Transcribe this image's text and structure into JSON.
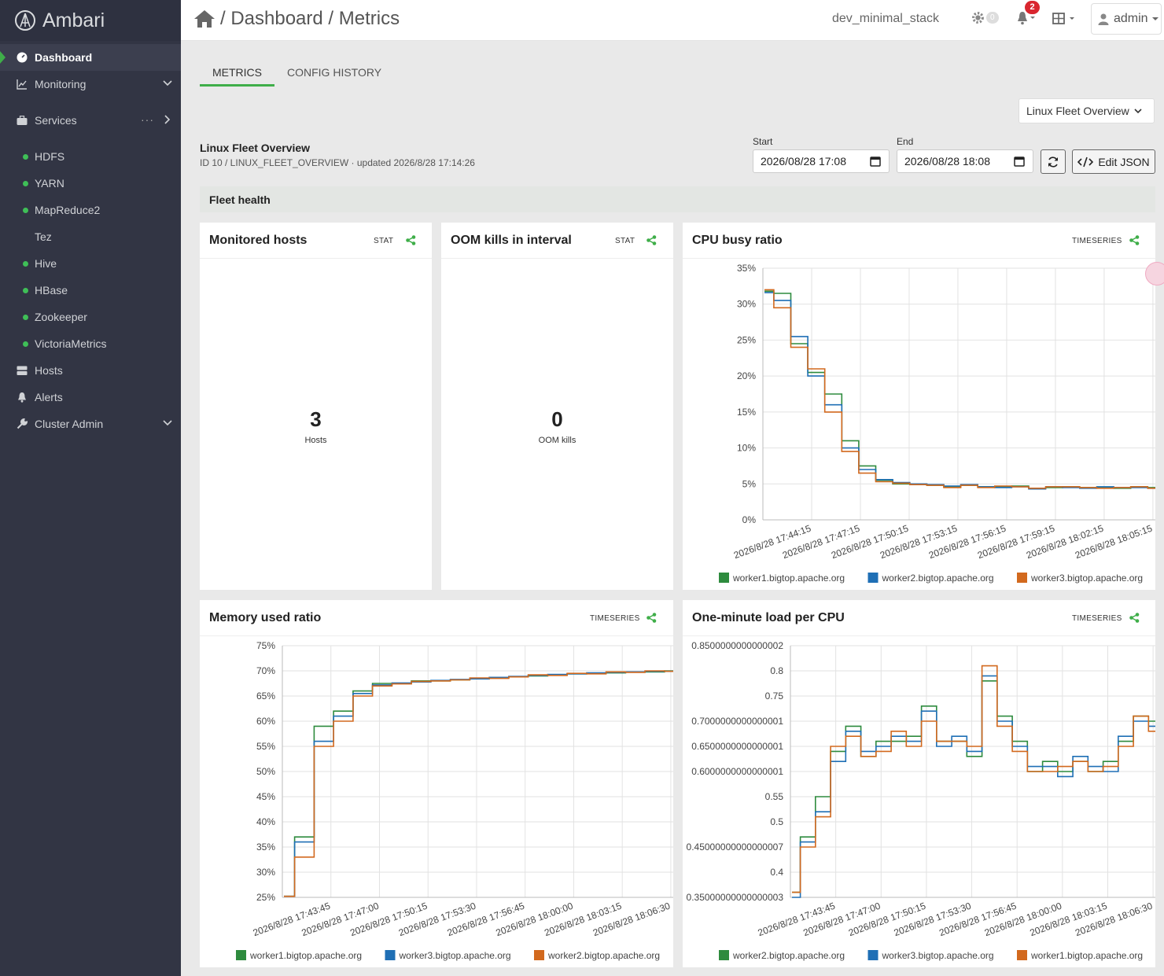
{
  "brand": {
    "name": "Ambari"
  },
  "sidebar": {
    "items": [
      {
        "label": "Dashboard",
        "icon": "dashboard-icon",
        "active": true
      },
      {
        "label": "Monitoring",
        "icon": "chart-line-icon"
      },
      {
        "label": "Services",
        "icon": "briefcase-icon"
      },
      {
        "label": "Hosts",
        "icon": "server-icon"
      },
      {
        "label": "Alerts",
        "icon": "bell-icon"
      },
      {
        "label": "Cluster Admin",
        "icon": "wrench-icon"
      }
    ],
    "services": [
      {
        "label": "HDFS",
        "status": "green"
      },
      {
        "label": "YARN",
        "status": "green"
      },
      {
        "label": "MapReduce2",
        "status": "green"
      },
      {
        "label": "Tez",
        "status": "none"
      },
      {
        "label": "Hive",
        "status": "green"
      },
      {
        "label": "HBase",
        "status": "green"
      },
      {
        "label": "Zookeeper",
        "status": "green"
      },
      {
        "label": "VictoriaMetrics",
        "status": "green"
      }
    ],
    "services_more": "···"
  },
  "topbar": {
    "breadcrumb": "/ Dashboard / Metrics",
    "stack": "dev_minimal_stack",
    "ops_count": "0",
    "alerts_count": "2",
    "user": "admin"
  },
  "tabs": [
    "METRICS",
    "CONFIG HISTORY"
  ],
  "dashboard": {
    "selector": "Linux Fleet Overview",
    "title": "Linux Fleet Overview",
    "subtitle": "ID 10 / LINUX_FLEET_OVERVIEW · updated 2026/8/28 17:14:26",
    "start_label": "Start",
    "start_value": "2026/08/28 17:08",
    "end_label": "End",
    "end_value": "2026/08/28 18:08",
    "edit_json": "Edit JSON",
    "section": "Fleet health"
  },
  "panels": {
    "hosts": {
      "title": "Monitored hosts",
      "type": "STAT",
      "value": "3",
      "unit": "Hosts"
    },
    "oom": {
      "title": "OOM kills in interval",
      "type": "STAT",
      "value": "0",
      "unit": "OOM kills"
    },
    "cpu": {
      "title": "CPU busy ratio",
      "type": "TIMESERIES"
    },
    "mem": {
      "title": "Memory used ratio",
      "type": "TIMESERIES"
    },
    "load": {
      "title": "One-minute load per CPU",
      "type": "TIMESERIES"
    }
  },
  "colors": {
    "accent": "#3fae49",
    "series_green": "#2e8b3e",
    "series_blue": "#1f6fb5",
    "series_orange": "#d2691e"
  },
  "chart_data": [
    {
      "id": "cpu",
      "type": "line",
      "ylim": [
        0,
        35
      ],
      "yticks": [
        "0%",
        "5%",
        "10%",
        "15%",
        "20%",
        "25%",
        "30%",
        "35%"
      ],
      "xticks": [
        "2026/8/28 17:44:15",
        "2026/8/28 17:47:15",
        "2026/8/28 17:50:15",
        "2026/8/28 17:53:15",
        "2026/8/28 17:56:15",
        "2026/8/28 17:59:15",
        "2026/8/28 18:02:15",
        "2026/8/28 18:05:15"
      ],
      "series": [
        {
          "name": "worker1.bigtop.apache.org",
          "color": "#2e8b3e",
          "values": [
            31.8,
            31.5,
            24.5,
            20.5,
            17.5,
            11,
            7.5,
            5.5,
            5.0,
            5.0,
            4.8,
            4.6,
            4.8,
            4.6,
            4.6,
            4.7,
            4.4,
            4.5,
            4.6,
            4.5,
            4.5,
            4.4,
            4.6,
            4.5
          ]
        },
        {
          "name": "worker2.bigtop.apache.org",
          "color": "#1f6fb5",
          "values": [
            31.6,
            30.5,
            25.5,
            20,
            16,
            10,
            7,
            5.6,
            5.2,
            5.0,
            4.9,
            4.7,
            4.9,
            4.6,
            4.5,
            4.6,
            4.3,
            4.6,
            4.5,
            4.4,
            4.6,
            4.5,
            4.5,
            4.4
          ]
        },
        {
          "name": "worker3.bigtop.apache.org",
          "color": "#d2691e",
          "values": [
            32,
            29.5,
            24,
            21,
            15,
            9.5,
            6.5,
            5.3,
            5.1,
            4.9,
            4.8,
            4.5,
            4.8,
            4.5,
            4.7,
            4.6,
            4.4,
            4.6,
            4.6,
            4.5,
            4.4,
            4.5,
            4.6,
            4.4
          ]
        }
      ]
    },
    {
      "id": "mem",
      "type": "line",
      "ylim": [
        25,
        75
      ],
      "yticks": [
        "25%",
        "30%",
        "35%",
        "40%",
        "45%",
        "50%",
        "55%",
        "60%",
        "65%",
        "70%",
        "75%"
      ],
      "xticks": [
        "2026/8/28 17:43:45",
        "2026/8/28 17:47:00",
        "2026/8/28 17:50:15",
        "2026/8/28 17:53:30",
        "2026/8/28 17:56:45",
        "2026/8/28 18:00:00",
        "2026/8/28 18:03:15",
        "2026/8/28 18:06:30"
      ],
      "series": [
        {
          "name": "worker1.bigtop.apache.org",
          "color": "#2e8b3e",
          "values": [
            25.2,
            37,
            59,
            62,
            66,
            67.5,
            67.5,
            68,
            68,
            68.2,
            68.5,
            68.6,
            68.8,
            69,
            69.2,
            69.4,
            69.5,
            69.6,
            69.8,
            69.8,
            70
          ]
        },
        {
          "name": "worker3.bigtop.apache.org",
          "color": "#1f6fb5",
          "values": [
            25.2,
            36,
            56,
            61,
            65.5,
            67.2,
            67.6,
            67.8,
            68.1,
            68.3,
            68.4,
            68.7,
            68.9,
            69.1,
            69.3,
            69.4,
            69.6,
            69.7,
            69.8,
            69.9,
            69.9
          ]
        },
        {
          "name": "worker2.bigtop.apache.org",
          "color": "#d2691e",
          "values": [
            25.2,
            33,
            55,
            60,
            65,
            67,
            67.4,
            67.9,
            68,
            68.2,
            68.6,
            68.5,
            68.8,
            69.2,
            69.1,
            69.5,
            69.4,
            69.8,
            69.7,
            70,
            69.9
          ]
        }
      ]
    },
    {
      "id": "load",
      "type": "line",
      "ylim": [
        0.35,
        0.85
      ],
      "yticks": [
        "0.35000000000000003",
        "0.4",
        "0.45000000000000007",
        "0.5",
        "0.55",
        "0.6000000000000001",
        "0.6500000000000001",
        "0.7000000000000001",
        "0.75",
        "0.8",
        "0.8500000000000002"
      ],
      "xticks": [
        "2026/8/28 17:43:45",
        "2026/8/28 17:47:00",
        "2026/8/28 17:50:15",
        "2026/8/28 17:53:30",
        "2026/8/28 17:56:45",
        "2026/8/28 18:00:00",
        "2026/8/28 18:03:15",
        "2026/8/28 18:06:30"
      ],
      "series": [
        {
          "name": "worker2.bigtop.apache.org",
          "color": "#2e8b3e",
          "values": [
            0.36,
            0.47,
            0.55,
            0.64,
            0.69,
            0.63,
            0.66,
            0.66,
            0.67,
            0.73,
            0.66,
            0.66,
            0.63,
            0.78,
            0.71,
            0.66,
            0.6,
            0.62,
            0.6,
            0.62,
            0.6,
            0.62,
            0.66,
            0.71,
            0.7
          ]
        },
        {
          "name": "worker3.bigtop.apache.org",
          "color": "#1f6fb5",
          "values": [
            0.35,
            0.46,
            0.52,
            0.62,
            0.68,
            0.64,
            0.65,
            0.67,
            0.66,
            0.72,
            0.65,
            0.67,
            0.64,
            0.79,
            0.7,
            0.65,
            0.61,
            0.61,
            0.59,
            0.63,
            0.61,
            0.6,
            0.67,
            0.7,
            0.69
          ]
        },
        {
          "name": "worker1.bigtop.apache.org",
          "color": "#d2691e",
          "values": [
            0.36,
            0.45,
            0.51,
            0.65,
            0.67,
            0.63,
            0.64,
            0.68,
            0.65,
            0.7,
            0.66,
            0.66,
            0.65,
            0.81,
            0.69,
            0.64,
            0.6,
            0.6,
            0.61,
            0.62,
            0.6,
            0.61,
            0.65,
            0.71,
            0.68
          ]
        }
      ]
    }
  ]
}
